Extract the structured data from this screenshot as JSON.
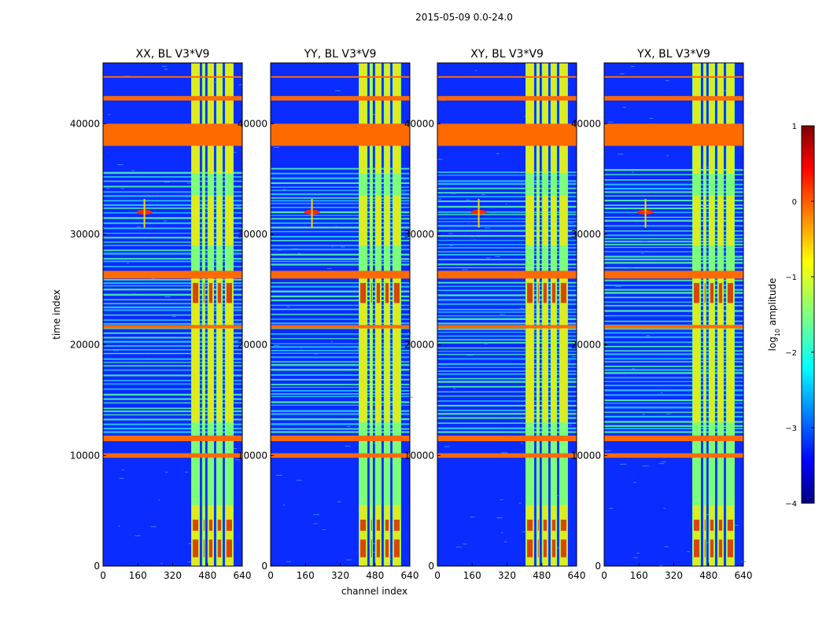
{
  "chart_data": {
    "type": "heatmap",
    "suptitle": "2015-05-09 0.0-24.0",
    "xlabel": "channel index",
    "ylabel": "time index",
    "xlim": [
      0,
      640
    ],
    "ylim": [
      0,
      45500
    ],
    "x_ticks": [
      0,
      160,
      320,
      480,
      640
    ],
    "y_ticks": [
      0,
      10000,
      20000,
      30000,
      40000
    ],
    "panels": [
      {
        "title": "XX, BL V3*V9",
        "pol": "XX"
      },
      {
        "title": "YY, BL V3*V9",
        "pol": "YY"
      },
      {
        "title": "XY, BL V3*V9",
        "pol": "XY"
      },
      {
        "title": "YX, BL V3*V9",
        "pol": "YX"
      }
    ],
    "flagged_time_ranges": [
      [
        38000,
        40000
      ],
      [
        26000,
        26700
      ],
      [
        21500,
        21800
      ],
      [
        11300,
        11800
      ],
      [
        9800,
        10200
      ],
      [
        42100,
        42500
      ],
      [
        44200,
        44300
      ]
    ],
    "high_amplitude_channel_bands": [
      [
        405,
        445
      ],
      [
        455,
        470
      ],
      [
        480,
        510
      ],
      [
        520,
        550
      ],
      [
        560,
        600
      ]
    ],
    "colorbar": {
      "label": "log10 amplitude",
      "label_main": "log",
      "label_sub": "10",
      "label_rest": " amplitude",
      "range": [
        -4,
        1
      ],
      "ticks": [
        -4,
        -3,
        -2,
        -1,
        0,
        1
      ],
      "tick_labels": [
        "−4",
        "−3",
        "−2",
        "−1",
        "0",
        "1"
      ],
      "colormap": "jet"
    }
  },
  "colors": {
    "background": "#000080",
    "flag": "#ff6a00",
    "band_low": "#7cff7a",
    "band_high": "#ffe600",
    "band_peak": "#d40000",
    "stripe": "#54ffa2",
    "noise": "#0a2cff"
  }
}
